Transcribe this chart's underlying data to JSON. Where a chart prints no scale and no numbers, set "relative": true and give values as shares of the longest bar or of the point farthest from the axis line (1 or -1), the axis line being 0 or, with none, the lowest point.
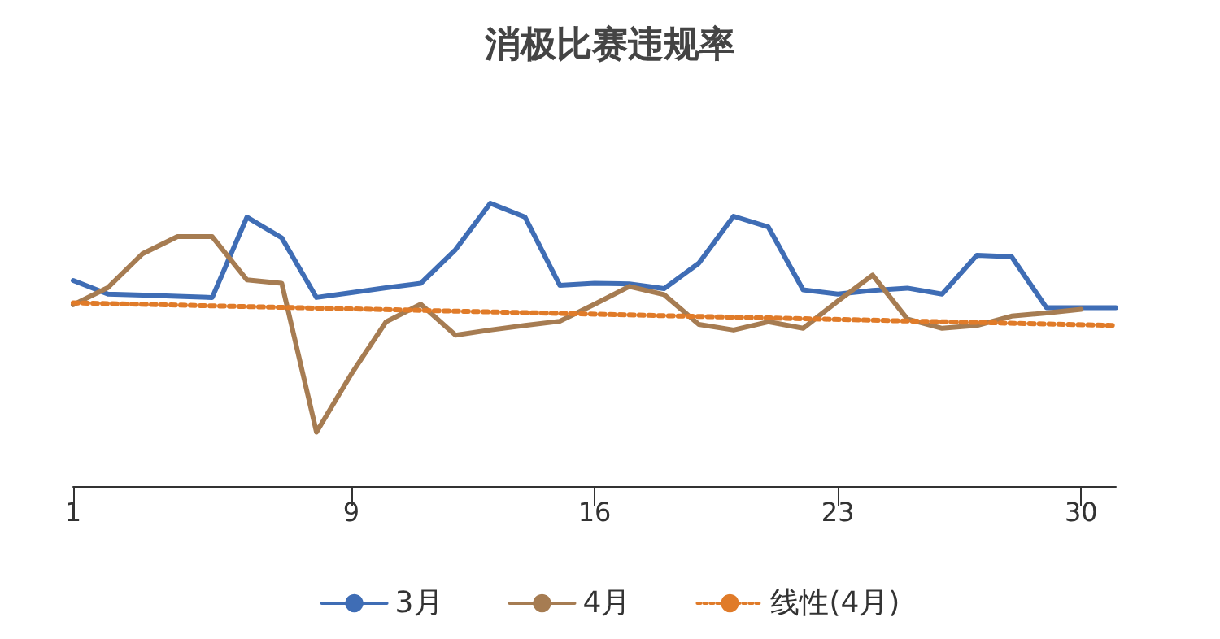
{
  "chart_data": {
    "type": "line",
    "title": "消极比赛违规率",
    "relative": true,
    "legend": "bottom",
    "marker": "none",
    "categories": [
      "1",
      null,
      null,
      null,
      null,
      null,
      null,
      null,
      "9",
      null,
      null,
      null,
      null,
      null,
      null,
      "16",
      null,
      null,
      null,
      null,
      null,
      null,
      "23",
      null,
      null,
      null,
      null,
      null,
      null,
      "30",
      null
    ],
    "series": [
      {
        "name": "3月",
        "color": "#3f6db5",
        "line_style": "solid",
        "values": [
          0.727,
          0.679,
          0.675,
          0.671,
          0.667,
          0.951,
          0.878,
          0.667,
          0.684,
          0.701,
          0.717,
          0.836,
          1,
          0.951,
          0.71,
          0.717,
          0.715,
          0.698,
          0.788,
          0.954,
          0.916,
          0.694,
          0.679,
          0.692,
          0.7,
          0.679,
          0.816,
          0.811,
          0.631,
          0.631,
          0.631
        ]
      },
      {
        "name": "4月",
        "color": "#a67c52",
        "line_style": "solid",
        "values": [
          0.641,
          0.702,
          0.822,
          0.882,
          0.882,
          0.729,
          0.717,
          0.191,
          0.396,
          0.581,
          0.643,
          0.534,
          0.552,
          0.568,
          0.583,
          0.643,
          0.706,
          0.677,
          0.572,
          0.552,
          0.581,
          0.558,
          0.654,
          0.746,
          0.591,
          0.558,
          0.568,
          0.601,
          0.612,
          0.625,
          null
        ]
      },
      {
        "name": "线性(4月)",
        "color": "#e07b29",
        "line_style": "dotted",
        "values": [
          0.648,
          null,
          null,
          null,
          null,
          null,
          null,
          null,
          null,
          null,
          null,
          null,
          null,
          null,
          null,
          null,
          null,
          null,
          null,
          null,
          null,
          null,
          null,
          null,
          null,
          null,
          null,
          null,
          null,
          null,
          0.568
        ]
      }
    ]
  }
}
